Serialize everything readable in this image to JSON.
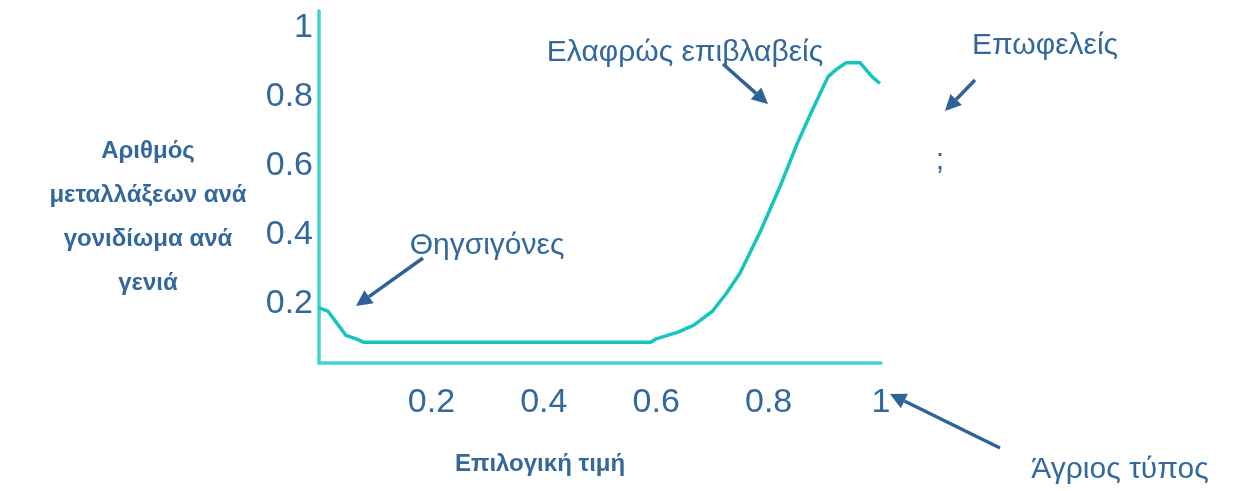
{
  "chart_data": {
    "type": "line",
    "xlabel": "Επιλογική τιμή",
    "ylabel": "Αριθμός μεταλλάξεων ανά γονιδίωμα ανά γενιά",
    "x": [
      0,
      0.016,
      0.048,
      0.066,
      0.08,
      0.555,
      0.568,
      0.59,
      0.6,
      0.64,
      0.667,
      0.7,
      0.724,
      0.749,
      0.785,
      0.82,
      0.852,
      0.877,
      0.906,
      0.92,
      0.938,
      0.963,
      0.984,
      0.998
    ],
    "series": [
      {
        "color": "#17c4be",
        "values": [
          0.18,
          0.17,
          0.1,
          0.09,
          0.08,
          0.08,
          0.08,
          0.08,
          0.09,
          0.11,
          0.13,
          0.17,
          0.22,
          0.28,
          0.4,
          0.53,
          0.66,
          0.75,
          0.85,
          0.87,
          0.89,
          0.89,
          0.85,
          0.83
        ]
      }
    ],
    "xlim": [
      0,
      1
    ],
    "ylim": [
      0.02,
      1.04
    ],
    "xticks": [
      0.2,
      0.4,
      0.6,
      0.8,
      1
    ],
    "yticks": [
      0.2,
      0.4,
      0.6,
      0.8,
      1
    ],
    "grid": false,
    "marker": "none",
    "annotations": [
      "Θηγσιγόνες",
      "Ελαφρώς επιβλαβείς",
      "Επωφελείς",
      ";",
      "Άγριος τύπος"
    ]
  }
}
